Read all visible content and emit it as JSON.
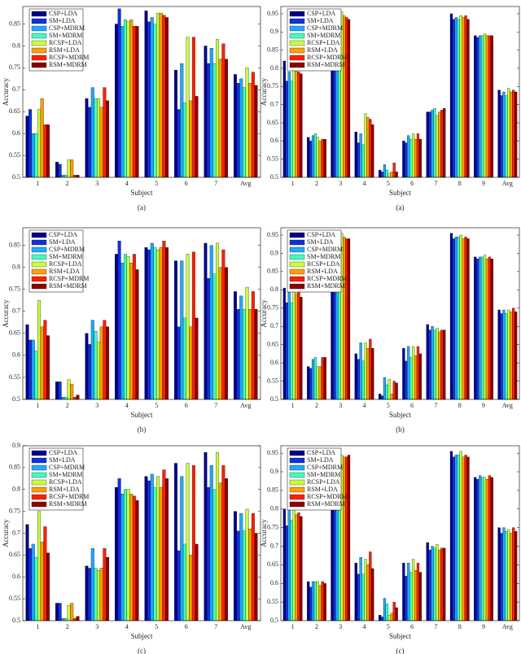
{
  "chart_data": [
    {
      "type": "bar",
      "caption": "(a)",
      "x_label": "Subject",
      "y_label": "Accuracy",
      "legend": "upper left",
      "categories": [
        "1",
        "2",
        "3",
        "4",
        "5",
        "6",
        "7",
        "Avg"
      ],
      "ylim": [
        0.5,
        0.89
      ],
      "yticks": [
        0.5,
        0.55,
        0.6,
        0.65,
        0.7,
        0.75,
        0.8,
        0.85
      ],
      "series": [
        {
          "name": "CSP+LDA",
          "color": "#00008f",
          "values": [
            0.64,
            0.535,
            0.68,
            0.85,
            0.88,
            0.745,
            0.8,
            0.735
          ]
        },
        {
          "name": "SM+LDA",
          "color": "#1030e0",
          "values": [
            0.655,
            0.53,
            0.66,
            0.885,
            0.855,
            0.655,
            0.76,
            0.715
          ]
        },
        {
          "name": "CSP+MDRM",
          "color": "#20a8ff",
          "values": [
            0.6,
            0.505,
            0.705,
            0.845,
            0.865,
            0.76,
            0.795,
            0.725
          ]
        },
        {
          "name": "SM+MDRM",
          "color": "#40ffc0",
          "values": [
            0.6,
            0.505,
            0.68,
            0.86,
            0.85,
            0.67,
            0.76,
            0.705
          ]
        },
        {
          "name": "RCSP+LDA",
          "color": "#c8ff40",
          "values": [
            0.655,
            0.54,
            0.68,
            0.855,
            0.875,
            0.82,
            0.815,
            0.75
          ]
        },
        {
          "name": "RSM+LDA",
          "color": "#ffa000",
          "values": [
            0.68,
            0.54,
            0.66,
            0.86,
            0.875,
            0.675,
            0.77,
            0.715
          ]
        },
        {
          "name": "RCSP+MDRM",
          "color": "#ff2000",
          "values": [
            0.62,
            0.505,
            0.705,
            0.845,
            0.87,
            0.82,
            0.805,
            0.74
          ]
        },
        {
          "name": "RSM+MDRM",
          "color": "#8f0000",
          "values": [
            0.62,
            0.505,
            0.675,
            0.845,
            0.865,
            0.685,
            0.77,
            0.71
          ]
        }
      ]
    },
    {
      "type": "bar",
      "caption": "(a)",
      "x_label": "Subject",
      "y_label": "Accuracy",
      "legend": "upper left",
      "categories": [
        "1",
        "2",
        "3",
        "4",
        "5",
        "6",
        "7",
        "8",
        "9",
        "Avg"
      ],
      "ylim": [
        0.5,
        0.97
      ],
      "yticks": [
        0.5,
        0.55,
        0.6,
        0.65,
        0.7,
        0.75,
        0.8,
        0.85,
        0.9,
        0.95
      ],
      "series": [
        {
          "name": "CSP+LDA",
          "color": "#00008f",
          "values": [
            0.82,
            0.61,
            0.96,
            0.625,
            0.52,
            0.6,
            0.68,
            0.95,
            0.89,
            0.74
          ]
        },
        {
          "name": "SM+LDA",
          "color": "#1030e0",
          "values": [
            0.765,
            0.6,
            0.945,
            0.595,
            0.515,
            0.595,
            0.68,
            0.935,
            0.885,
            0.725
          ]
        },
        {
          "name": "CSP+MDRM",
          "color": "#20a8ff",
          "values": [
            0.79,
            0.615,
            0.94,
            0.62,
            0.535,
            0.615,
            0.685,
            0.94,
            0.89,
            0.735
          ]
        },
        {
          "name": "SM+MDRM",
          "color": "#40ffc0",
          "values": [
            0.765,
            0.62,
            0.94,
            0.59,
            0.52,
            0.605,
            0.69,
            0.935,
            0.89,
            0.725
          ]
        },
        {
          "name": "RCSP+LDA",
          "color": "#c8ff40",
          "values": [
            0.815,
            0.61,
            0.955,
            0.675,
            0.51,
            0.62,
            0.67,
            0.945,
            0.895,
            0.745
          ]
        },
        {
          "name": "RSM+LDA",
          "color": "#ffa000",
          "values": [
            0.795,
            0.6,
            0.945,
            0.665,
            0.515,
            0.605,
            0.68,
            0.94,
            0.89,
            0.735
          ]
        },
        {
          "name": "RCSP+MDRM",
          "color": "#ff2000",
          "values": [
            0.79,
            0.605,
            0.94,
            0.66,
            0.54,
            0.62,
            0.685,
            0.945,
            0.89,
            0.74
          ]
        },
        {
          "name": "RSM+MDRM",
          "color": "#8f0000",
          "values": [
            0.785,
            0.605,
            0.935,
            0.645,
            0.515,
            0.605,
            0.69,
            0.935,
            0.89,
            0.735
          ]
        }
      ]
    },
    {
      "type": "bar",
      "caption": "(b)",
      "x_label": "Subject",
      "y_label": "Accuracy",
      "legend": "upper left",
      "categories": [
        "1",
        "2",
        "3",
        "4",
        "5",
        "6",
        "7",
        "Avg"
      ],
      "ylim": [
        0.5,
        0.89
      ],
      "yticks": [
        0.5,
        0.55,
        0.6,
        0.65,
        0.7,
        0.75,
        0.8,
        0.85
      ],
      "series": [
        {
          "name": "CSP+LDA",
          "color": "#00008f",
          "values": [
            0.67,
            0.54,
            0.65,
            0.83,
            0.845,
            0.815,
            0.855,
            0.745
          ]
        },
        {
          "name": "SM+LDA",
          "color": "#1030e0",
          "values": [
            0.635,
            0.54,
            0.625,
            0.86,
            0.84,
            0.665,
            0.775,
            0.705
          ]
        },
        {
          "name": "CSP+MDRM",
          "color": "#20a8ff",
          "values": [
            0.635,
            0.505,
            0.68,
            0.81,
            0.855,
            0.815,
            0.85,
            0.735
          ]
        },
        {
          "name": "SM+MDRM",
          "color": "#40ffc0",
          "values": [
            0.61,
            0.505,
            0.655,
            0.83,
            0.845,
            0.685,
            0.785,
            0.705
          ]
        },
        {
          "name": "RCSP+LDA",
          "color": "#c8ff40",
          "values": [
            0.725,
            0.545,
            0.63,
            0.825,
            0.84,
            0.83,
            0.855,
            0.755
          ]
        },
        {
          "name": "RSM+LDA",
          "color": "#ffa000",
          "values": [
            0.665,
            0.535,
            0.665,
            0.81,
            0.845,
            0.665,
            0.8,
            0.705
          ]
        },
        {
          "name": "RCSP+MDRM",
          "color": "#ff2000",
          "values": [
            0.68,
            0.505,
            0.68,
            0.83,
            0.86,
            0.835,
            0.84,
            0.745
          ]
        },
        {
          "name": "RSM+MDRM",
          "color": "#8f0000",
          "values": [
            0.645,
            0.51,
            0.665,
            0.795,
            0.845,
            0.685,
            0.8,
            0.705
          ]
        }
      ]
    },
    {
      "type": "bar",
      "caption": "(b)",
      "x_label": "Subject",
      "y_label": "Accuracy",
      "legend": "upper left",
      "categories": [
        "1",
        "2",
        "3",
        "4",
        "5",
        "6",
        "7",
        "8",
        "9",
        "Avg"
      ],
      "ylim": [
        0.5,
        0.97
      ],
      "yticks": [
        0.5,
        0.55,
        0.6,
        0.65,
        0.7,
        0.75,
        0.8,
        0.85,
        0.9,
        0.95
      ],
      "series": [
        {
          "name": "CSP+LDA",
          "color": "#00008f",
          "values": [
            0.805,
            0.59,
            0.955,
            0.625,
            0.515,
            0.64,
            0.705,
            0.955,
            0.89,
            0.745
          ]
        },
        {
          "name": "SM+LDA",
          "color": "#1030e0",
          "values": [
            0.765,
            0.585,
            0.945,
            0.61,
            0.51,
            0.605,
            0.69,
            0.94,
            0.885,
            0.735
          ]
        },
        {
          "name": "CSP+MDRM",
          "color": "#20a8ff",
          "values": [
            0.795,
            0.61,
            0.94,
            0.655,
            0.56,
            0.645,
            0.7,
            0.945,
            0.89,
            0.745
          ]
        },
        {
          "name": "SM+MDRM",
          "color": "#40ffc0",
          "values": [
            0.765,
            0.615,
            0.945,
            0.605,
            0.54,
            0.615,
            0.69,
            0.945,
            0.89,
            0.735
          ]
        },
        {
          "name": "RCSP+LDA",
          "color": "#c8ff40",
          "values": [
            0.8,
            0.59,
            0.955,
            0.655,
            0.555,
            0.645,
            0.695,
            0.95,
            0.895,
            0.745
          ]
        },
        {
          "name": "RSM+LDA",
          "color": "#ffa000",
          "values": [
            0.79,
            0.59,
            0.945,
            0.64,
            0.515,
            0.62,
            0.685,
            0.94,
            0.885,
            0.74
          ]
        },
        {
          "name": "RCSP+MDRM",
          "color": "#ff2000",
          "values": [
            0.795,
            0.615,
            0.94,
            0.665,
            0.55,
            0.645,
            0.69,
            0.945,
            0.89,
            0.75
          ]
        },
        {
          "name": "RSM+MDRM",
          "color": "#8f0000",
          "values": [
            0.78,
            0.615,
            0.94,
            0.64,
            0.545,
            0.625,
            0.69,
            0.94,
            0.885,
            0.74
          ]
        }
      ]
    },
    {
      "type": "bar",
      "caption": "(c)",
      "x_label": "Subject",
      "y_label": "Accuracy",
      "legend": "upper left",
      "categories": [
        "1",
        "2",
        "3",
        "4",
        "5",
        "6",
        "7",
        "Avg"
      ],
      "ylim": [
        0.5,
        0.9
      ],
      "yticks": [
        0.5,
        0.55,
        0.6,
        0.65,
        0.7,
        0.75,
        0.8,
        0.85,
        0.9
      ],
      "series": [
        {
          "name": "CSP+LDA",
          "color": "#00008f",
          "values": [
            0.72,
            0.54,
            0.625,
            0.805,
            0.83,
            0.86,
            0.885,
            0.75
          ]
        },
        {
          "name": "SM+LDA",
          "color": "#1030e0",
          "values": [
            0.665,
            0.54,
            0.62,
            0.825,
            0.82,
            0.66,
            0.805,
            0.705
          ]
        },
        {
          "name": "CSP+MDRM",
          "color": "#20a8ff",
          "values": [
            0.675,
            0.505,
            0.665,
            0.79,
            0.835,
            0.83,
            0.855,
            0.745
          ]
        },
        {
          "name": "SM+MDRM",
          "color": "#40ffc0",
          "values": [
            0.645,
            0.505,
            0.62,
            0.8,
            0.805,
            0.675,
            0.8,
            0.705
          ]
        },
        {
          "name": "RCSP+LDA",
          "color": "#c8ff40",
          "values": [
            0.75,
            0.535,
            0.615,
            0.8,
            0.83,
            0.86,
            0.885,
            0.755
          ]
        },
        {
          "name": "RSM+LDA",
          "color": "#ffa000",
          "values": [
            0.68,
            0.54,
            0.62,
            0.79,
            0.805,
            0.65,
            0.815,
            0.71
          ]
        },
        {
          "name": "RCSP+MDRM",
          "color": "#ff2000",
          "values": [
            0.715,
            0.505,
            0.665,
            0.785,
            0.845,
            0.855,
            0.855,
            0.745
          ]
        },
        {
          "name": "RSM+MDRM",
          "color": "#8f0000",
          "values": [
            0.655,
            0.51,
            0.645,
            0.775,
            0.825,
            0.675,
            0.825,
            0.7
          ]
        }
      ]
    },
    {
      "type": "bar",
      "caption": "(c)",
      "x_label": "Subject",
      "y_label": "Accuracy",
      "legend": "upper left",
      "categories": [
        "1",
        "2",
        "3",
        "4",
        "5",
        "6",
        "7",
        "8",
        "9",
        "Avg"
      ],
      "ylim": [
        0.5,
        0.97
      ],
      "yticks": [
        0.5,
        0.55,
        0.6,
        0.65,
        0.7,
        0.75,
        0.8,
        0.85,
        0.9,
        0.95
      ],
      "series": [
        {
          "name": "CSP+LDA",
          "color": "#00008f",
          "values": [
            0.8,
            0.605,
            0.945,
            0.655,
            0.515,
            0.655,
            0.71,
            0.955,
            0.885,
            0.75
          ]
        },
        {
          "name": "SM+LDA",
          "color": "#1030e0",
          "values": [
            0.755,
            0.59,
            0.94,
            0.625,
            0.51,
            0.62,
            0.69,
            0.94,
            0.88,
            0.735
          ]
        },
        {
          "name": "CSP+MDRM",
          "color": "#20a8ff",
          "values": [
            0.8,
            0.605,
            0.945,
            0.67,
            0.56,
            0.655,
            0.7,
            0.945,
            0.89,
            0.75
          ]
        },
        {
          "name": "SM+MDRM",
          "color": "#40ffc0",
          "values": [
            0.77,
            0.605,
            0.94,
            0.625,
            0.545,
            0.63,
            0.695,
            0.945,
            0.885,
            0.74
          ]
        },
        {
          "name": "RCSP+LDA",
          "color": "#c8ff40",
          "values": [
            0.8,
            0.605,
            0.945,
            0.665,
            0.515,
            0.665,
            0.705,
            0.955,
            0.885,
            0.745
          ]
        },
        {
          "name": "RSM+LDA",
          "color": "#ffa000",
          "values": [
            0.785,
            0.595,
            0.94,
            0.65,
            0.52,
            0.635,
            0.69,
            0.94,
            0.88,
            0.735
          ]
        },
        {
          "name": "RCSP+MDRM",
          "color": "#ff2000",
          "values": [
            0.79,
            0.605,
            0.94,
            0.685,
            0.55,
            0.655,
            0.695,
            0.945,
            0.89,
            0.75
          ]
        },
        {
          "name": "RSM+MDRM",
          "color": "#8f0000",
          "values": [
            0.78,
            0.6,
            0.945,
            0.64,
            0.535,
            0.63,
            0.695,
            0.94,
            0.885,
            0.74
          ]
        }
      ]
    }
  ]
}
